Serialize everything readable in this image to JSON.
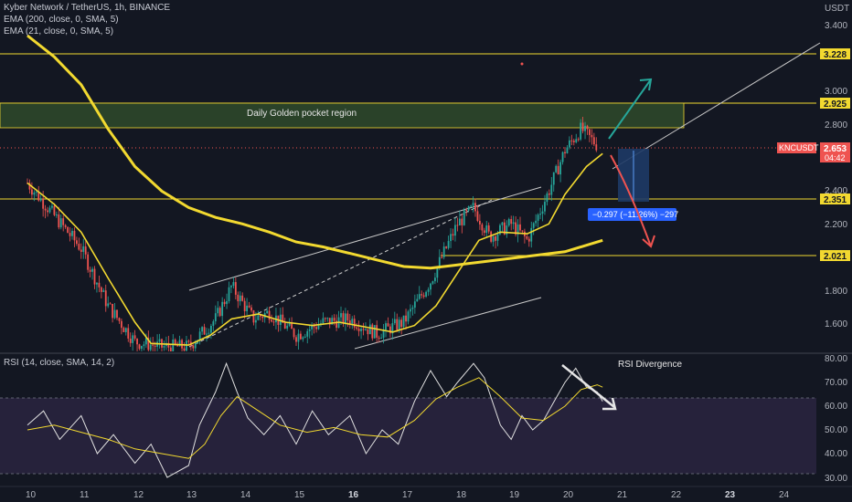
{
  "header": {
    "symbol_line": "Kyber Network / TetherUS, 1h, BINANCE",
    "ema200_line": "EMA (200, close, 0, SMA, 5)",
    "ema21_line": "EMA (21, close, 0, SMA, 5)",
    "rsi_line": "RSI (14, close, SMA, 14, 2)",
    "currency": "USDT"
  },
  "price_tag": {
    "symbol": "KNCUSDT",
    "price": "2.653",
    "countdown": "04:42"
  },
  "colors": {
    "background": "#131722",
    "bull": "#26a69a",
    "bear": "#ef5350",
    "ema": "#f2d930",
    "level_line": "#f2d930",
    "zone": "#2f4a2a",
    "rsi_fill": "#2a2440",
    "arrow_up": "#26a69a",
    "arrow_down": "#ef5350"
  },
  "chart_data": [
    {
      "type": "candlestick",
      "pane": "price",
      "y_axis_ticks": [
        "3.400",
        "3.000",
        "2.800",
        "2.400",
        "2.200",
        "1.800",
        "1.600"
      ],
      "ylim": [
        1.45,
        3.5
      ],
      "x_axis_ticks": [
        "10",
        "11",
        "12",
        "13",
        "14",
        "15",
        "16",
        "17",
        "18",
        "19",
        "20",
        "21",
        "22",
        "23",
        "24"
      ],
      "key_levels": [
        {
          "value": 3.228,
          "label": "3.228"
        },
        {
          "value": 2.925,
          "label": "2.925"
        },
        {
          "value": 2.351,
          "label": "2.351"
        },
        {
          "value": 2.021,
          "label": "2.021"
        }
      ],
      "zone": {
        "from": 2.78,
        "to": 2.925,
        "label": "Daily Golden pocket region"
      },
      "measure_label": "−0.297 (−11.26%) −297",
      "close_path": [
        [
          "10",
          2.45
        ],
        [
          "10.5",
          2.25
        ],
        [
          "11",
          2.05
        ],
        [
          "11.5",
          1.7
        ],
        [
          "12",
          1.48
        ],
        [
          "12.5",
          1.45
        ],
        [
          "13",
          1.45
        ],
        [
          "13.5",
          1.62
        ],
        [
          "13.8",
          1.82
        ],
        [
          "14.2",
          1.62
        ],
        [
          "14.5",
          1.66
        ],
        [
          "15",
          1.52
        ],
        [
          "15.5",
          1.6
        ],
        [
          "16",
          1.62
        ],
        [
          "16.5",
          1.53
        ],
        [
          "17",
          1.6
        ],
        [
          "17.5",
          1.85
        ],
        [
          "18",
          2.2
        ],
        [
          "18.3",
          2.3
        ],
        [
          "18.6",
          2.12
        ],
        [
          "19",
          2.2
        ],
        [
          "19.3",
          2.1
        ],
        [
          "19.7",
          2.4
        ],
        [
          "20",
          2.65
        ],
        [
          "20.3",
          2.78
        ],
        [
          "20.6",
          2.68
        ]
      ],
      "series": [
        {
          "name": "EMA (200, close, 0, SMA, 5)",
          "values": [
            [
              "10",
              3.35
            ],
            [
              "10.5",
              3.22
            ],
            [
              "11",
              3.05
            ],
            [
              "11.5",
              2.78
            ],
            [
              "12",
              2.55
            ],
            [
              "12.5",
              2.4
            ],
            [
              "13",
              2.3
            ],
            [
              "13.5",
              2.24
            ],
            [
              "14",
              2.2
            ],
            [
              "14.5",
              2.15
            ],
            [
              "15",
              2.09
            ],
            [
              "15.5",
              2.06
            ],
            [
              "16",
              2.02
            ],
            [
              "16.5",
              1.98
            ],
            [
              "17",
              1.94
            ],
            [
              "17.5",
              1.93
            ],
            [
              "18",
              1.95
            ],
            [
              "18.5",
              1.97
            ],
            [
              "19",
              1.99
            ],
            [
              "19.5",
              2.01
            ],
            [
              "20",
              2.03
            ],
            [
              "20.4",
              2.07
            ],
            [
              "20.7",
              2.1
            ]
          ]
        },
        {
          "name": "EMA (21, close, 0, SMA, 5)",
          "values": [
            [
              "10",
              2.45
            ],
            [
              "10.5",
              2.32
            ],
            [
              "11",
              2.15
            ],
            [
              "11.5",
              1.87
            ],
            [
              "12",
              1.6
            ],
            [
              "12.3",
              1.47
            ],
            [
              "13",
              1.46
            ],
            [
              "13.4",
              1.52
            ],
            [
              "13.8",
              1.62
            ],
            [
              "14.3",
              1.65
            ],
            [
              "14.8",
              1.6
            ],
            [
              "15.3",
              1.58
            ],
            [
              "15.8",
              1.6
            ],
            [
              "16.3",
              1.57
            ],
            [
              "16.8",
              1.54
            ],
            [
              "17.2",
              1.58
            ],
            [
              "17.6",
              1.7
            ],
            [
              "18",
              1.9
            ],
            [
              "18.4",
              2.1
            ],
            [
              "18.8",
              2.15
            ],
            [
              "19.3",
              2.14
            ],
            [
              "19.7",
              2.2
            ],
            [
              "20",
              2.38
            ],
            [
              "20.4",
              2.55
            ],
            [
              "20.7",
              2.63
            ]
          ]
        }
      ]
    },
    {
      "type": "line",
      "pane": "rsi",
      "title": "RSI (14, close, SMA, 14, 2)",
      "y_axis_ticks": [
        "80.00",
        "70.00",
        "60.00",
        "50.00",
        "40.00",
        "30.00"
      ],
      "ylim": [
        28,
        82
      ],
      "band": [
        30,
        63
      ],
      "annotation": "RSI Divergence",
      "series": [
        {
          "name": "RSI",
          "values": [
            [
              "10",
              52
            ],
            [
              "10.3",
              58
            ],
            [
              "10.6",
              46
            ],
            [
              "11",
              56
            ],
            [
              "11.3",
              40
            ],
            [
              "11.6",
              48
            ],
            [
              "12",
              36
            ],
            [
              "12.3",
              44
            ],
            [
              "12.6",
              30
            ],
            [
              "13",
              35
            ],
            [
              "13.2",
              52
            ],
            [
              "13.5",
              66
            ],
            [
              "13.7",
              78
            ],
            [
              "13.9",
              66
            ],
            [
              "14.1",
              55
            ],
            [
              "14.4",
              48
            ],
            [
              "14.7",
              56
            ],
            [
              "15",
              44
            ],
            [
              "15.3",
              58
            ],
            [
              "15.6",
              48
            ],
            [
              "16",
              56
            ],
            [
              "16.3",
              40
            ],
            [
              "16.6",
              50
            ],
            [
              "16.9",
              44
            ],
            [
              "17.2",
              62
            ],
            [
              "17.5",
              75
            ],
            [
              "17.8",
              64
            ],
            [
              "18",
              70
            ],
            [
              "18.3",
              78
            ],
            [
              "18.5",
              72
            ],
            [
              "18.8",
              52
            ],
            [
              "19",
              46
            ],
            [
              "19.2",
              56
            ],
            [
              "19.4",
              50
            ],
            [
              "19.6",
              54
            ],
            [
              "19.8",
              62
            ],
            [
              "20",
              70
            ],
            [
              "20.2",
              76
            ],
            [
              "20.4",
              68
            ],
            [
              "20.6",
              66
            ],
            [
              "20.7",
              62
            ]
          ]
        },
        {
          "name": "RSI SMA",
          "values": [
            [
              "10",
              50
            ],
            [
              "10.5",
              52
            ],
            [
              "11",
              49
            ],
            [
              "11.5",
              46
            ],
            [
              "12",
              42
            ],
            [
              "12.5",
              40
            ],
            [
              "13",
              38
            ],
            [
              "13.3",
              44
            ],
            [
              "13.6",
              56
            ],
            [
              "13.9",
              64
            ],
            [
              "14.3",
              58
            ],
            [
              "14.7",
              52
            ],
            [
              "15.2",
              49
            ],
            [
              "15.7",
              51
            ],
            [
              "16.2",
              48
            ],
            [
              "16.7",
              47
            ],
            [
              "17.2",
              54
            ],
            [
              "17.6",
              63
            ],
            [
              "18",
              68
            ],
            [
              "18.4",
              72
            ],
            [
              "18.8",
              64
            ],
            [
              "19.2",
              55
            ],
            [
              "19.6",
              54
            ],
            [
              "20",
              60
            ],
            [
              "20.3",
              67
            ],
            [
              "20.6",
              69
            ],
            [
              "20.7",
              68
            ]
          ]
        }
      ]
    }
  ]
}
